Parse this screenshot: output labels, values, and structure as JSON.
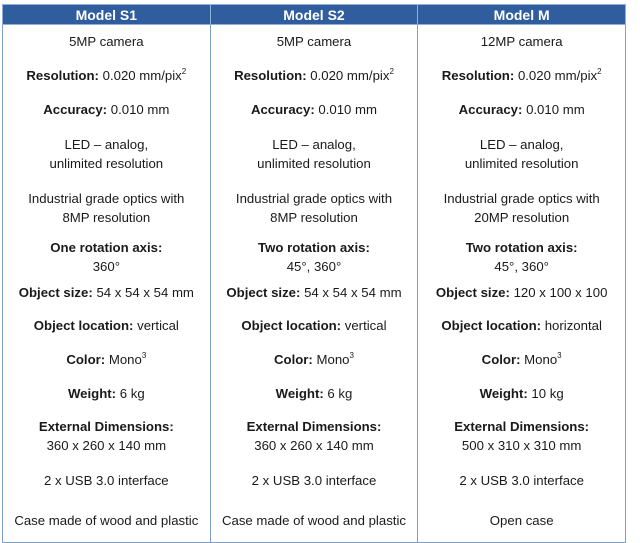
{
  "columns": [
    "Model S1",
    "Model S2",
    "Model M"
  ],
  "models": [
    {
      "camera": "5MP camera",
      "resolution_label": "Resolution:",
      "resolution_value": "0.020 mm/pix",
      "resolution_sup": "2",
      "accuracy_label": "Accuracy:",
      "accuracy_value": "0.010 mm",
      "led_line1": "LED – analog,",
      "led_line2": "unlimited resolution",
      "optics_line1": "Industrial grade optics with",
      "optics_line2": "8MP resolution",
      "rotation_label": "One rotation axis:",
      "rotation_value": "360°",
      "object_size_label": "Object size:",
      "object_size_value": "54 x 54 x 54 mm",
      "object_location_label": "Object location:",
      "object_location_value": "vertical",
      "color_label": "Color:",
      "color_value": "Mono",
      "color_sup": "3",
      "weight_label": "Weight:",
      "weight_value": "6 kg",
      "dimensions_label": "External Dimensions:",
      "dimensions_value": "360 x 260 x 140 mm",
      "interface": "2 x USB 3.0 interface",
      "case": "Case made of wood and plastic"
    },
    {
      "camera": "5MP camera",
      "resolution_label": "Resolution:",
      "resolution_value": "0.020 mm/pix",
      "resolution_sup": "2",
      "accuracy_label": "Accuracy:",
      "accuracy_value": "0.010 mm",
      "led_line1": "LED – analog,",
      "led_line2": "unlimited resolution",
      "optics_line1": "Industrial grade optics with",
      "optics_line2": "8MP resolution",
      "rotation_label": "Two rotation axis:",
      "rotation_value": "45°, 360°",
      "object_size_label": "Object size:",
      "object_size_value": "54 x 54 x 54 mm",
      "object_location_label": "Object location:",
      "object_location_value": "vertical",
      "color_label": "Color:",
      "color_value": "Mono",
      "color_sup": "3",
      "weight_label": "Weight:",
      "weight_value": "6 kg",
      "dimensions_label": "External Dimensions:",
      "dimensions_value": "360 x 260 x 140 mm",
      "interface": "2 x USB 3.0 interface",
      "case": "Case made of wood and plastic"
    },
    {
      "camera": "12MP camera",
      "resolution_label": "Resolution:",
      "resolution_value": "0.020 mm/pix",
      "resolution_sup": "2",
      "accuracy_label": "Accuracy:",
      "accuracy_value": "0.010 mm",
      "led_line1": "LED – analog,",
      "led_line2": "unlimited resolution",
      "optics_line1": "Industrial grade optics with",
      "optics_line2": "20MP resolution",
      "rotation_label": "Two rotation axis:",
      "rotation_value": "45°, 360°",
      "object_size_label": "Object size:",
      "object_size_value": "120 x 100 x 100",
      "object_location_label": "Object location:",
      "object_location_value": "horizontal",
      "color_label": "Color:",
      "color_value": "Mono",
      "color_sup": "3",
      "weight_label": "Weight:",
      "weight_value": "10 kg",
      "dimensions_label": "External Dimensions:",
      "dimensions_value": "500 x 310 x 310 mm",
      "interface": "2 x USB 3.0 interface",
      "case": "Open case"
    }
  ]
}
